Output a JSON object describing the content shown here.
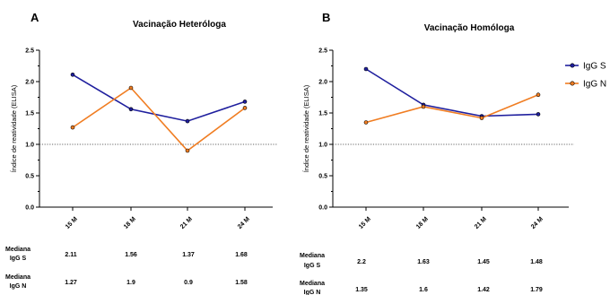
{
  "chart_data": [
    {
      "panel": "A",
      "type": "line",
      "title": "Vacinação Heteróloga",
      "ylabel": "Índice de reatividade (ELISA)",
      "categories": [
        "15 M",
        "18 M",
        "21 M",
        "24 M"
      ],
      "ylim": [
        0,
        2.5
      ],
      "yticks": [
        "0.0",
        "0.5",
        "1.0",
        "1.5",
        "2.0",
        "2.5"
      ],
      "reference_line": 1.0,
      "series": [
        {
          "name": "IgG S",
          "color": "#1f1f9e",
          "values": [
            2.11,
            1.56,
            1.37,
            1.68
          ]
        },
        {
          "name": "IgG N",
          "color": "#f07d22",
          "values": [
            1.27,
            1.9,
            0.9,
            1.58
          ]
        }
      ],
      "table": {
        "rows": [
          {
            "label": [
              "Mediana",
              "IgG S"
            ],
            "values": [
              "2.11",
              "1.56",
              "1.37",
              "1.68"
            ]
          },
          {
            "label": [
              "Mediana",
              "IgG N"
            ],
            "values": [
              "1.27",
              "1.9",
              "0.9",
              "1.58"
            ]
          }
        ]
      }
    },
    {
      "panel": "B",
      "type": "line",
      "title": "Vacinação Homóloga",
      "ylabel": "Índice de reatividade (ELISA)",
      "categories": [
        "15 M",
        "18 M",
        "21 M",
        "24 M"
      ],
      "ylim": [
        0,
        2.5
      ],
      "yticks": [
        "0.0",
        "0.5",
        "1.0",
        "1.5",
        "2.0",
        "2.5"
      ],
      "reference_line": 1.0,
      "series": [
        {
          "name": "IgG S",
          "color": "#1f1f9e",
          "values": [
            2.2,
            1.63,
            1.45,
            1.48
          ]
        },
        {
          "name": "IgG N",
          "color": "#f07d22",
          "values": [
            1.35,
            1.6,
            1.42,
            1.79
          ]
        }
      ],
      "table": {
        "rows": [
          {
            "label": [
              "Mediana",
              "IgG S"
            ],
            "values": [
              "2.2",
              "1.63",
              "1.45",
              "1.48"
            ]
          },
          {
            "label": [
              "Mediana",
              "IgG N"
            ],
            "values": [
              "1.35",
              "1.6",
              "1.42",
              "1.79"
            ]
          }
        ]
      }
    }
  ],
  "legend": {
    "placement": "right",
    "items": [
      {
        "name": "IgG S",
        "color": "#1f1f9e"
      },
      {
        "name": "IgG N",
        "color": "#f07d22"
      }
    ]
  }
}
